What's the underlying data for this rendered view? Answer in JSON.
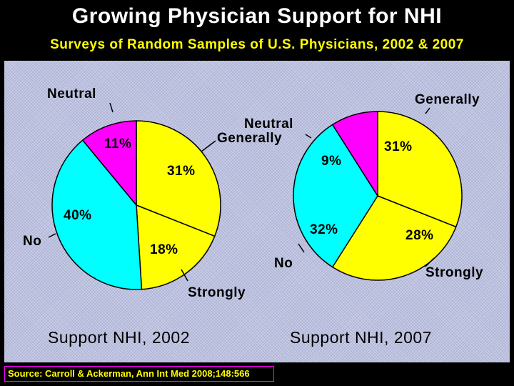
{
  "title": "Growing Physician Support for NHI",
  "subtitle": "Surveys of Random Samples of U.S. Physicians, 2002 & 2007",
  "source": "Source: Carroll & Ackerman, Ann Int Med 2008;148:566",
  "colors": {
    "generally": "#ffff00",
    "strongly": "#ffff00",
    "no": "#00ffff",
    "neutral": "#ff00ff"
  },
  "chart_data": [
    {
      "type": "pie",
      "title": "Support NHI, 2002",
      "slices": [
        {
          "category": "Generally",
          "value": 31,
          "label": "31%"
        },
        {
          "category": "Strongly",
          "value": 18,
          "label": "18%"
        },
        {
          "category": "No",
          "value": 40,
          "label": "40%"
        },
        {
          "category": "Neutral",
          "value": 11,
          "label": "11%"
        }
      ],
      "callouts": {
        "neutral": "Neutral",
        "generally": "Generally",
        "no": "No",
        "strongly": "Strongly"
      }
    },
    {
      "type": "pie",
      "title": "Support NHI, 2007",
      "slices": [
        {
          "category": "Generally",
          "value": 31,
          "label": "31%"
        },
        {
          "category": "Strongly",
          "value": 28,
          "label": "28%"
        },
        {
          "category": "No",
          "value": 32,
          "label": "32%"
        },
        {
          "category": "Neutral",
          "value": 9,
          "label": "9%"
        }
      ],
      "callouts": {
        "neutral": "Neutral",
        "generally": "Generally",
        "no": "No",
        "strongly": "Strongly"
      }
    }
  ]
}
